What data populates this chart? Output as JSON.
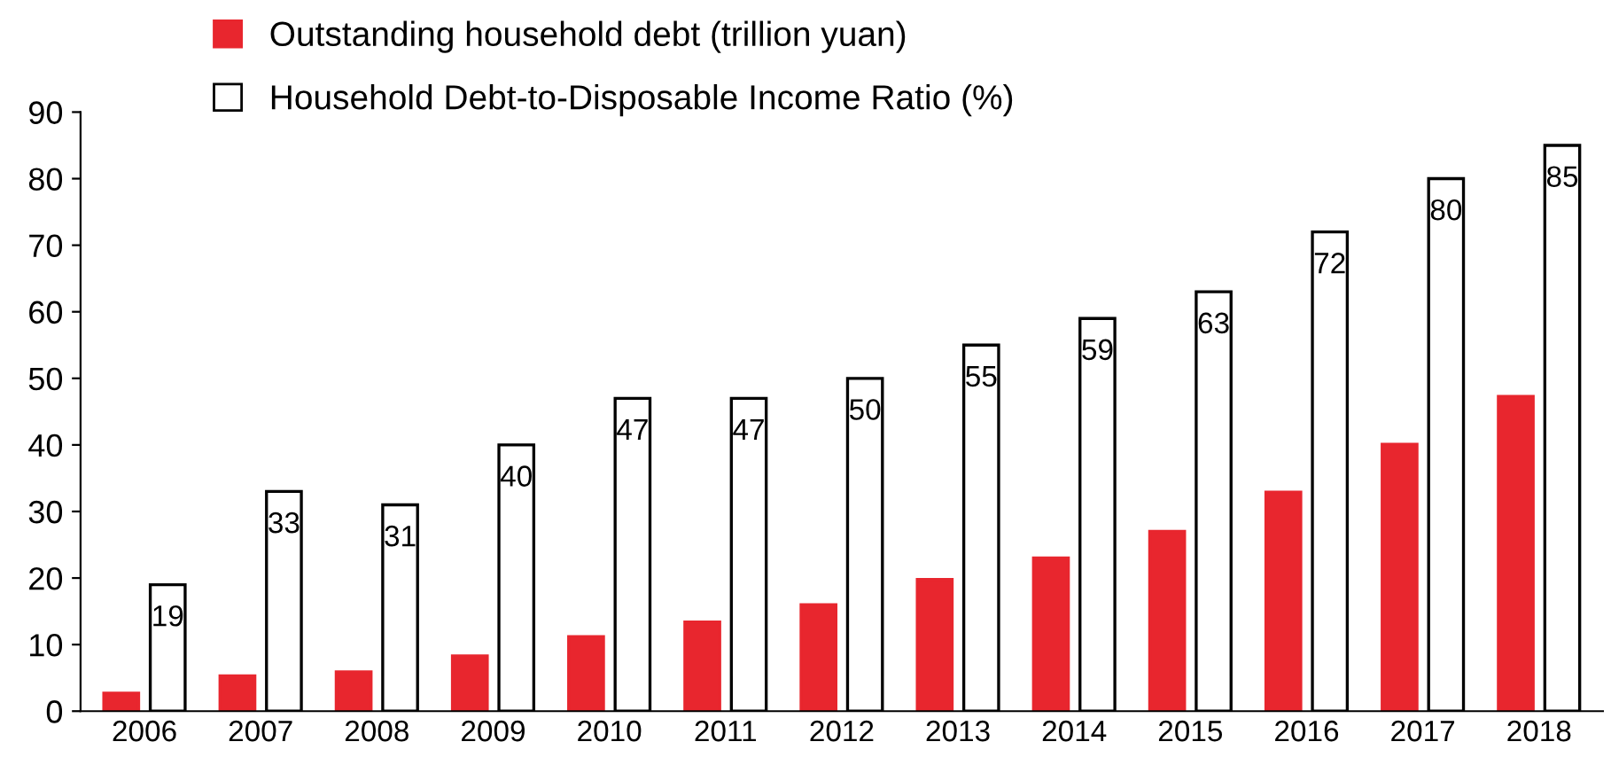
{
  "chart_data": {
    "type": "bar",
    "categories": [
      "2006",
      "2007",
      "2008",
      "2009",
      "2010",
      "2011",
      "2012",
      "2013",
      "2014",
      "2015",
      "2016",
      "2017",
      "2018"
    ],
    "series": [
      {
        "name": "Outstanding household debt (trillion yuan)",
        "color": "#e8262e",
        "values": [
          2.7,
          5.3,
          5.9,
          8.3,
          11.2,
          13.4,
          16,
          19.8,
          23,
          27,
          32.9,
          40.1,
          47.3
        ]
      },
      {
        "name": "Household Debt-to-Disposable Income Ratio (%)",
        "color": "#ffffff",
        "values": [
          19,
          33,
          31,
          40,
          47,
          47,
          50,
          55,
          59,
          63,
          72,
          80,
          85
        ],
        "value_labels": [
          "19",
          "33",
          "31",
          "40",
          "47",
          "47",
          "50",
          "55",
          "59",
          "63",
          "72",
          "80",
          "85"
        ]
      }
    ],
    "ylim": [
      0,
      90
    ],
    "yticks": [
      0,
      10,
      20,
      30,
      40,
      50,
      60,
      70,
      80,
      90
    ],
    "grid": false,
    "legend": "top left"
  }
}
